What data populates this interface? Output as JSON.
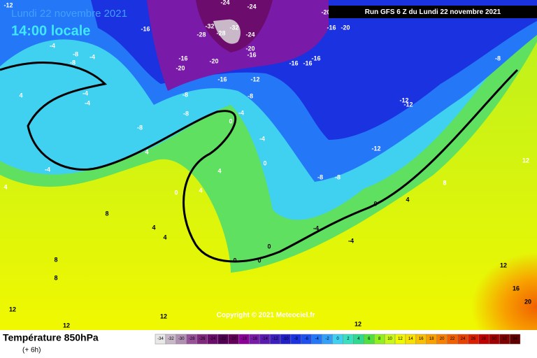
{
  "header": {
    "date": "Lundi 22 novembre 2021",
    "time": "14:00 locale",
    "run": "Run GFS 6 Z du Lundi 22 novembre 2021"
  },
  "footer": {
    "title": "Température 850hPa",
    "step": "(+ 6h)",
    "copyright": "Copyright © 2021 Meteociel.fr"
  },
  "colorbar": {
    "ticks": [
      -34,
      -32,
      -30,
      -28,
      -26,
      -24,
      -22,
      -20,
      -18,
      -16,
      -14,
      -12,
      -10,
      -8,
      -6,
      -4,
      -2,
      0,
      2,
      4,
      6,
      8,
      10,
      12,
      14,
      16,
      18,
      20,
      22,
      24,
      26,
      28,
      30,
      32,
      34
    ],
    "colors": [
      "#e8e8e8",
      "#c8b8c8",
      "#b090b0",
      "#985098",
      "#80287c",
      "#6c0c6c",
      "#500050",
      "#64005a",
      "#8c0098",
      "#7a1aa8",
      "#5a1ab0",
      "#3c1ebe",
      "#2020c8",
      "#1a32e0",
      "#1e50f0",
      "#2478f8",
      "#32a0f8",
      "#40d0f0",
      "#38e0c0",
      "#30d890",
      "#50e040",
      "#90f020",
      "#c8f818",
      "#f0f800",
      "#f8e000",
      "#f8c000",
      "#f8a000",
      "#f88000",
      "#f06000",
      "#e84000",
      "#d82000",
      "#c00000",
      "#a00000",
      "#800000",
      "#600000"
    ]
  },
  "map_labels": [
    "-12",
    "-16",
    "-24",
    "-24",
    "-20",
    "-32",
    "-28",
    "-28",
    "-32",
    "-24",
    "-20",
    "-16",
    "-16",
    "-20",
    "-20",
    "-16",
    "-12",
    "-8",
    "-8",
    "-8",
    "-4",
    "0",
    "-8",
    "-4",
    "-8",
    "-4",
    "-8",
    "-4",
    "-4",
    "4",
    "4",
    "-4",
    "4",
    "-4",
    "0",
    "4",
    "4",
    "0",
    "-8",
    "-8",
    "-16",
    "-20",
    "-16",
    "-16",
    "-16",
    "-8",
    "-12",
    "-12",
    "-12",
    "0",
    "4",
    "8",
    "8",
    "4",
    "4",
    "0",
    "0",
    "0",
    "-4",
    "-4",
    "8",
    "8",
    "12",
    "12",
    "12",
    "12",
    "12",
    "12",
    "16",
    "20"
  ]
}
